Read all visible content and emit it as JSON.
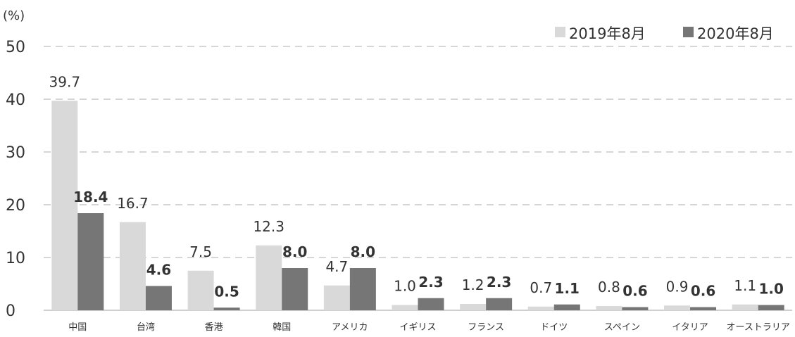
{
  "chart_data": {
    "type": "bar",
    "y_unit_label": "(%)",
    "categories": [
      "中国",
      "台湾",
      "香港",
      "韓国",
      "アメリカ",
      "イギリス",
      "フランス",
      "ドイツ",
      "スペイン",
      "イタリア",
      "オーストラリア"
    ],
    "series": [
      {
        "name": "2019年8月",
        "color": "#d9d9d9",
        "values": [
          39.7,
          16.7,
          7.5,
          12.3,
          4.7,
          1.0,
          1.2,
          0.7,
          0.8,
          0.9,
          1.1
        ],
        "value_labels": [
          "39.7",
          "16.7",
          "7.5",
          "12.3",
          "4.7",
          "1.0",
          "1.2",
          "0.7",
          "0.8",
          "0.9",
          "1.1"
        ]
      },
      {
        "name": "2020年8月",
        "color": "#767676",
        "values": [
          18.4,
          4.6,
          0.5,
          8.0,
          8.0,
          2.3,
          2.3,
          1.1,
          0.6,
          0.6,
          1.0
        ],
        "value_labels": [
          "18.4",
          "4.6",
          "0.5",
          "8.0",
          "8.0",
          "2.3",
          "2.3",
          "1.1",
          "0.6",
          "0.6",
          "1.0"
        ]
      }
    ],
    "ylim": [
      0,
      50
    ],
    "y_ticks": [
      "0",
      "10",
      "20",
      "30",
      "40",
      "50"
    ],
    "gridlines": "dashed",
    "legend_position": "top-right"
  }
}
